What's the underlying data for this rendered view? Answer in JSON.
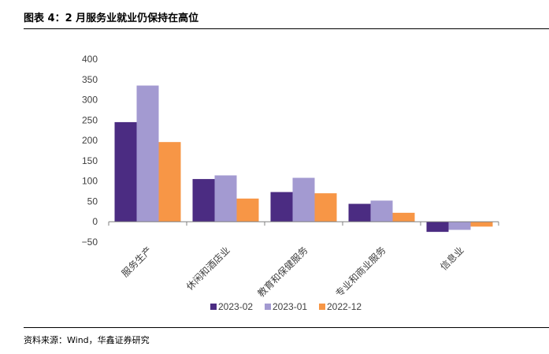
{
  "header": {
    "title": "图表 4：2 月服务业就业仍保持在高位"
  },
  "footer": {
    "source": "资料来源：Wind，华鑫证券研究"
  },
  "chart_data": {
    "type": "bar",
    "title": "",
    "xlabel": "",
    "ylabel": "",
    "categories": [
      "服务生产",
      "休闲和酒店业",
      "教育和保健服务",
      "专业和商业服务",
      "信息业"
    ],
    "series": [
      {
        "name": "2023-02",
        "color": "#4b2c82",
        "values": [
          245,
          105,
          73,
          44,
          -25
        ]
      },
      {
        "name": "2023-01",
        "color": "#a39ad1",
        "values": [
          335,
          114,
          108,
          52,
          -20
        ]
      },
      {
        "name": "2022-12",
        "color": "#f79646",
        "values": [
          196,
          57,
          70,
          22,
          -12
        ]
      }
    ],
    "ylim": [
      -50,
      400
    ],
    "yticks": [
      -50,
      0,
      50,
      100,
      150,
      200,
      250,
      300,
      350,
      400
    ],
    "grid": false,
    "legend": "bottom"
  }
}
